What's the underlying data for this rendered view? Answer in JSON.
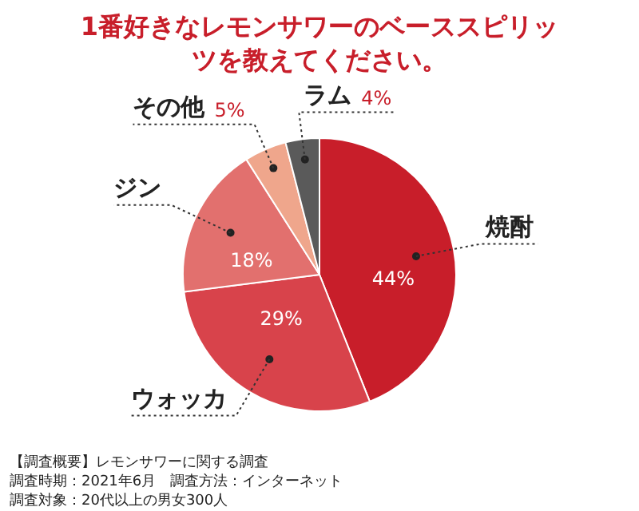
{
  "chart_data": {
    "type": "pie",
    "title": "1番好きなレモンサワーのベーススピリッツを教えてください。",
    "categories": [
      "焼酎",
      "ウォッカ",
      "ジン",
      "その他",
      "ラム"
    ],
    "values": [
      44,
      29,
      18,
      5,
      4
    ],
    "colors": [
      "#c81e2a",
      "#d8434b",
      "#e2706e",
      "#efa68c",
      "#5a5a5a"
    ],
    "value_labels": [
      "44%",
      "29%",
      "18%",
      "5%",
      "4%"
    ],
    "legend": false,
    "annotations": [
      "【調査概要】レモンサワーに関する調査",
      "調査時期：2021年6月　調査方法：インターネット",
      "調査対象：20代以上の男女300人"
    ]
  }
}
